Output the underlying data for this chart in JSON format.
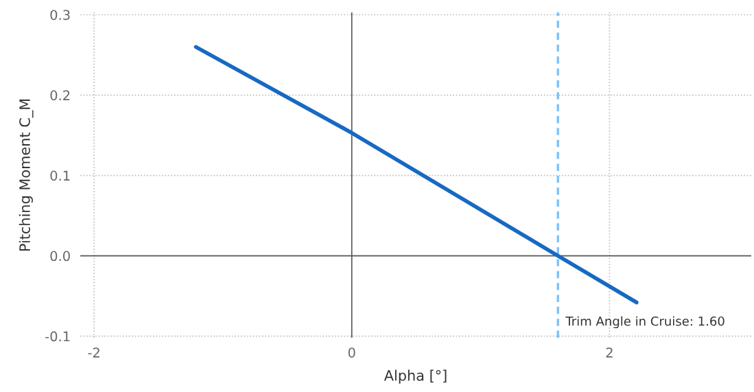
{
  "chart_data": {
    "type": "line",
    "xlabel": "Alpha [°]",
    "ylabel": "Pitching Moment C_M",
    "x": [
      -1.21,
      0,
      1.6,
      2.21
    ],
    "series": [
      {
        "color": "#1769c2",
        "values": [
          0.26,
          0.153,
          0.0,
          -0.058
        ]
      }
    ],
    "xlim": [
      -2.107,
      3.1
    ],
    "xticks": [
      -2,
      0,
      2
    ],
    "ylim": [
      -0.102,
      0.303
    ],
    "yticks": [
      {
        "value": -0.1,
        "label": "-0.1"
      },
      {
        "value": 0,
        "label": "0.0"
      },
      0.1,
      0.2,
      0.3
    ],
    "ref_lines": [
      {
        "axis": "x",
        "value": 1.6,
        "label": "Trim Angle in Cruise: 1.60",
        "color": "#7fc3f7",
        "line_style": "dashed"
      }
    ],
    "grid": true,
    "line_style": "solid",
    "marker": "none",
    "legend": false
  }
}
